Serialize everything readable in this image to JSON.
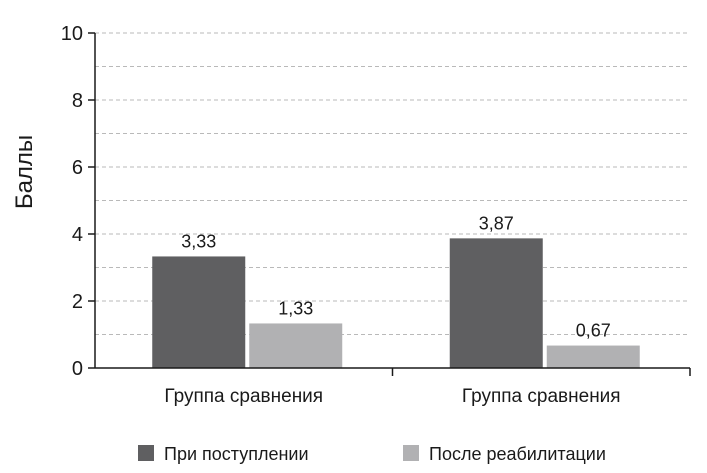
{
  "chart_data": {
    "type": "bar",
    "title": "",
    "xlabel": "",
    "ylabel": "Баллы",
    "ylim": [
      0,
      10
    ],
    "yticks": [
      0,
      2,
      4,
      6,
      8,
      10
    ],
    "grid": true,
    "legend_position": "bottom",
    "categories": [
      "Группа сравнения",
      "Группа сравнения"
    ],
    "series": [
      {
        "name": "При поступлении",
        "color": "#5f5f61",
        "values": [
          3.33,
          3.87
        ],
        "labels": [
          "3,33",
          "3,87"
        ]
      },
      {
        "name": "После реабилитации",
        "color": "#b1b1b3",
        "values": [
          1.33,
          0.67
        ],
        "labels": [
          "1,33",
          "0,67"
        ]
      }
    ]
  }
}
